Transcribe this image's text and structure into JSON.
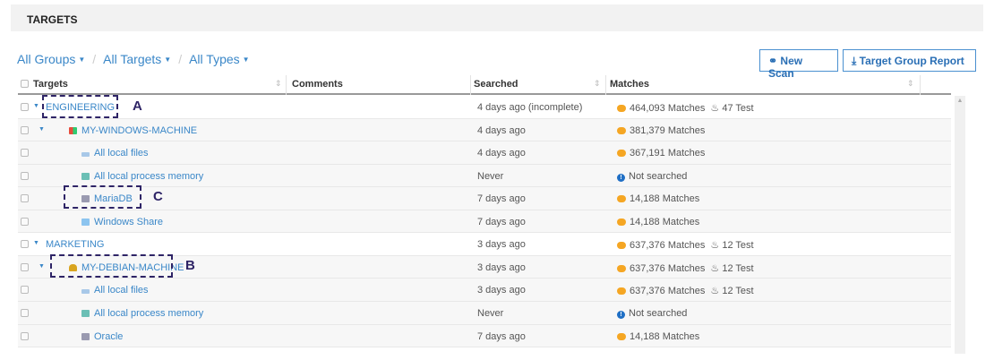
{
  "title": "TARGETS",
  "breadcrumb": [
    "All Groups",
    "All Targets",
    "All Types"
  ],
  "buttons": {
    "new_scan": "New Scan",
    "report": "Target Group Report"
  },
  "columns": [
    "Targets",
    "Comments",
    "Searched",
    "Matches"
  ],
  "rows": [
    {
      "name": "ENGINEERING",
      "level": 0,
      "icon": "",
      "searched": "4 days ago (incomplete)",
      "matches": "464,093 Matches",
      "test": "47 Test",
      "status": "matches"
    },
    {
      "name": "MY-WINDOWS-MACHINE",
      "level": 1,
      "icon": "windows-icon",
      "searched": "4 days ago",
      "matches": "381,379 Matches",
      "test": "",
      "status": "matches"
    },
    {
      "name": "All local files",
      "level": 2,
      "icon": "drive-icon",
      "searched": "4 days ago",
      "matches": "367,191 Matches",
      "test": "",
      "status": "matches"
    },
    {
      "name": "All local process memory",
      "level": 2,
      "icon": "memory-icon",
      "searched": "Never",
      "matches": "Not searched",
      "test": "",
      "status": "info"
    },
    {
      "name": "MariaDB",
      "level": 2,
      "icon": "database-icon",
      "searched": "7 days ago",
      "matches": "14,188 Matches",
      "test": "",
      "status": "matches"
    },
    {
      "name": "Windows Share",
      "level": 2,
      "icon": "folder-icon",
      "searched": "7 days ago",
      "matches": "14,188 Matches",
      "test": "",
      "status": "matches"
    },
    {
      "name": "MARKETING",
      "level": 0,
      "icon": "",
      "searched": "3 days ago",
      "matches": "637,376 Matches",
      "test": "12 Test",
      "status": "matches"
    },
    {
      "name": "MY-DEBIAN-MACHINE",
      "level": 1,
      "icon": "linux-icon",
      "searched": "3 days ago",
      "matches": "637,376 Matches",
      "test": "12 Test",
      "status": "matches"
    },
    {
      "name": "All local files",
      "level": 2,
      "icon": "drive-icon",
      "searched": "3 days ago",
      "matches": "637,376 Matches",
      "test": "12 Test",
      "status": "matches"
    },
    {
      "name": "All local process memory",
      "level": 2,
      "icon": "memory-icon",
      "searched": "Never",
      "matches": "Not searched",
      "test": "",
      "status": "info"
    },
    {
      "name": "Oracle",
      "level": 2,
      "icon": "database-icon",
      "searched": "7 days ago",
      "matches": "14,188 Matches",
      "test": "",
      "status": "matches"
    }
  ],
  "annotations": {
    "a": "A",
    "b": "B",
    "c": "C"
  }
}
